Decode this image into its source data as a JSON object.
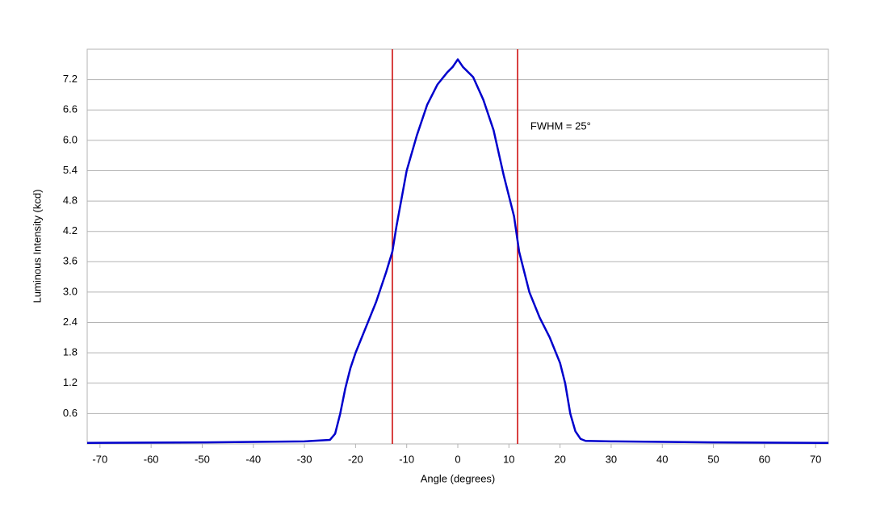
{
  "chart_data": {
    "type": "line",
    "x_label": "Angle (degrees)",
    "y_label": "Luminous Intensity (kcd)",
    "x": [
      -72.5,
      -50,
      -30,
      -25,
      -24,
      -23,
      -22,
      -21,
      -20,
      -18,
      -16,
      -14,
      -12.8,
      -12,
      -10,
      -8,
      -6,
      -4,
      -2,
      -1,
      0,
      1,
      3,
      5,
      7,
      9,
      11,
      12,
      14,
      16,
      18,
      20,
      21,
      22,
      23,
      24,
      25,
      30,
      50,
      72.5
    ],
    "series": [
      {
        "color": "#0000cc",
        "values": [
          0.02,
          0.03,
          0.05,
          0.08,
          0.2,
          0.6,
          1.1,
          1.5,
          1.8,
          2.3,
          2.8,
          3.4,
          3.8,
          4.3,
          5.4,
          6.1,
          6.7,
          7.1,
          7.35,
          7.45,
          7.6,
          7.45,
          7.25,
          6.8,
          6.2,
          5.3,
          4.5,
          3.8,
          3.0,
          2.5,
          2.1,
          1.6,
          1.2,
          0.6,
          0.25,
          0.1,
          0.06,
          0.05,
          0.03,
          0.02
        ]
      }
    ],
    "vlines": [
      {
        "value": -12.8,
        "color": "#cc0000"
      },
      {
        "value": 11.7,
        "color": "#cc0000"
      }
    ],
    "annotations": [
      {
        "text": "FWHM = 25°",
        "x": 14.2,
        "y": 6.27
      }
    ],
    "xlim": [
      -72.5,
      72.5
    ],
    "xticks": [
      -70,
      -60,
      -50,
      -40,
      -30,
      -20,
      -10,
      0,
      10,
      20,
      30,
      40,
      50,
      60,
      70
    ],
    "ylim": [
      0,
      7.8
    ],
    "yticks": [
      0.6,
      1.2,
      1.8,
      2.4,
      {
        "value": 3,
        "label": "3.0"
      },
      3.6,
      4.2,
      4.8,
      5.4,
      {
        "value": 6,
        "label": "6.0"
      },
      6.6,
      7.2
    ],
    "grid": true
  }
}
